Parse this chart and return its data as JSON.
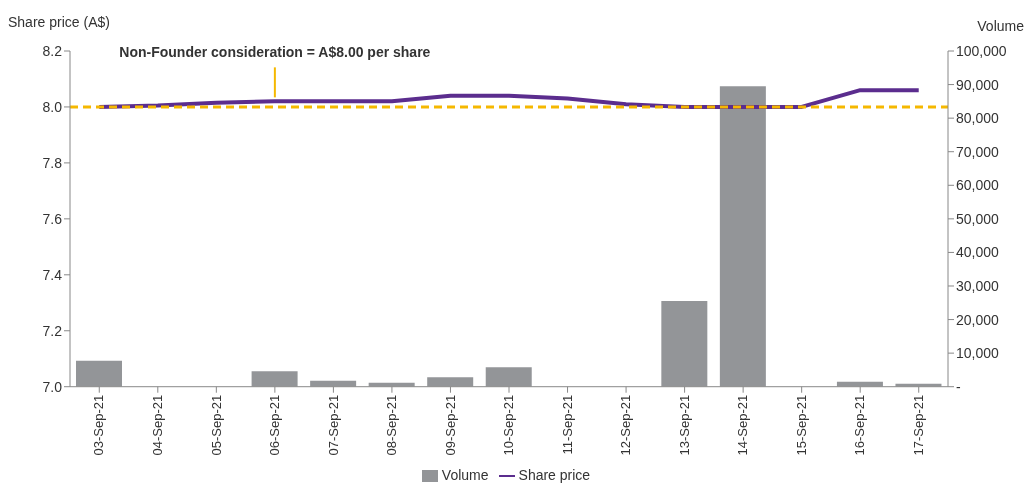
{
  "chart_data": {
    "type": "bar",
    "ylabel": "Share price (A$)",
    "y2label": "Volume",
    "categories": [
      "03-Sep-21",
      "04-Sep-21",
      "05-Sep-21",
      "06-Sep-21",
      "07-Sep-21",
      "08-Sep-21",
      "09-Sep-21",
      "10-Sep-21",
      "11-Sep-21",
      "12-Sep-21",
      "13-Sep-21",
      "14-Sep-21",
      "15-Sep-21",
      "16-Sep-21",
      "17-Sep-21"
    ],
    "series": [
      {
        "name": "Volume",
        "axis": "y2",
        "color": "#939598",
        "values": [
          7700,
          0,
          0,
          4600,
          1800,
          1200,
          2800,
          5800,
          0,
          0,
          25500,
          89500,
          0,
          1500,
          900
        ]
      },
      {
        "name": "Share price",
        "type": "line",
        "axis": "y",
        "color": "#5b2d8e",
        "values": [
          8.0,
          8.005,
          8.015,
          8.02,
          8.02,
          8.02,
          8.04,
          8.04,
          8.03,
          8.01,
          8.0,
          8.0,
          8.0,
          8.06,
          8.06
        ]
      }
    ],
    "ylim": [
      7.0,
      8.2
    ],
    "yticks": [
      {
        "value": 7.0,
        "label": "7.0"
      },
      {
        "value": 7.2,
        "label": "7.2"
      },
      {
        "value": 7.4,
        "label": "7.4"
      },
      {
        "value": 7.6,
        "label": "7.6"
      },
      {
        "value": 7.8,
        "label": "7.8"
      },
      {
        "value": 8.0,
        "label": "8.0"
      },
      {
        "value": 8.2,
        "label": "8.2"
      }
    ],
    "y2lim": [
      0,
      100000
    ],
    "y2ticks": [
      {
        "value": 0,
        "label": "-"
      },
      {
        "value": 10000,
        "label": "10,000"
      },
      {
        "value": 20000,
        "label": "20,000"
      },
      {
        "value": 30000,
        "label": "30,000"
      },
      {
        "value": 40000,
        "label": "40,000"
      },
      {
        "value": 50000,
        "label": "50,000"
      },
      {
        "value": 60000,
        "label": "60,000"
      },
      {
        "value": 70000,
        "label": "70,000"
      },
      {
        "value": 80000,
        "label": "80,000"
      },
      {
        "value": 90000,
        "label": "90,000"
      },
      {
        "value": 100000,
        "label": "100,000"
      }
    ],
    "ref_lines": [
      {
        "axis": "y",
        "value": 8.0,
        "color": "#f5b800",
        "line_style": "dashed"
      }
    ],
    "annotations": [
      {
        "text": "Non-Founder consideration = A$8.00 per share",
        "x": "06-Sep-21",
        "y": 8.02
      }
    ],
    "grid": false,
    "legend": "bottom",
    "marker": "none",
    "line_style": "solid"
  }
}
